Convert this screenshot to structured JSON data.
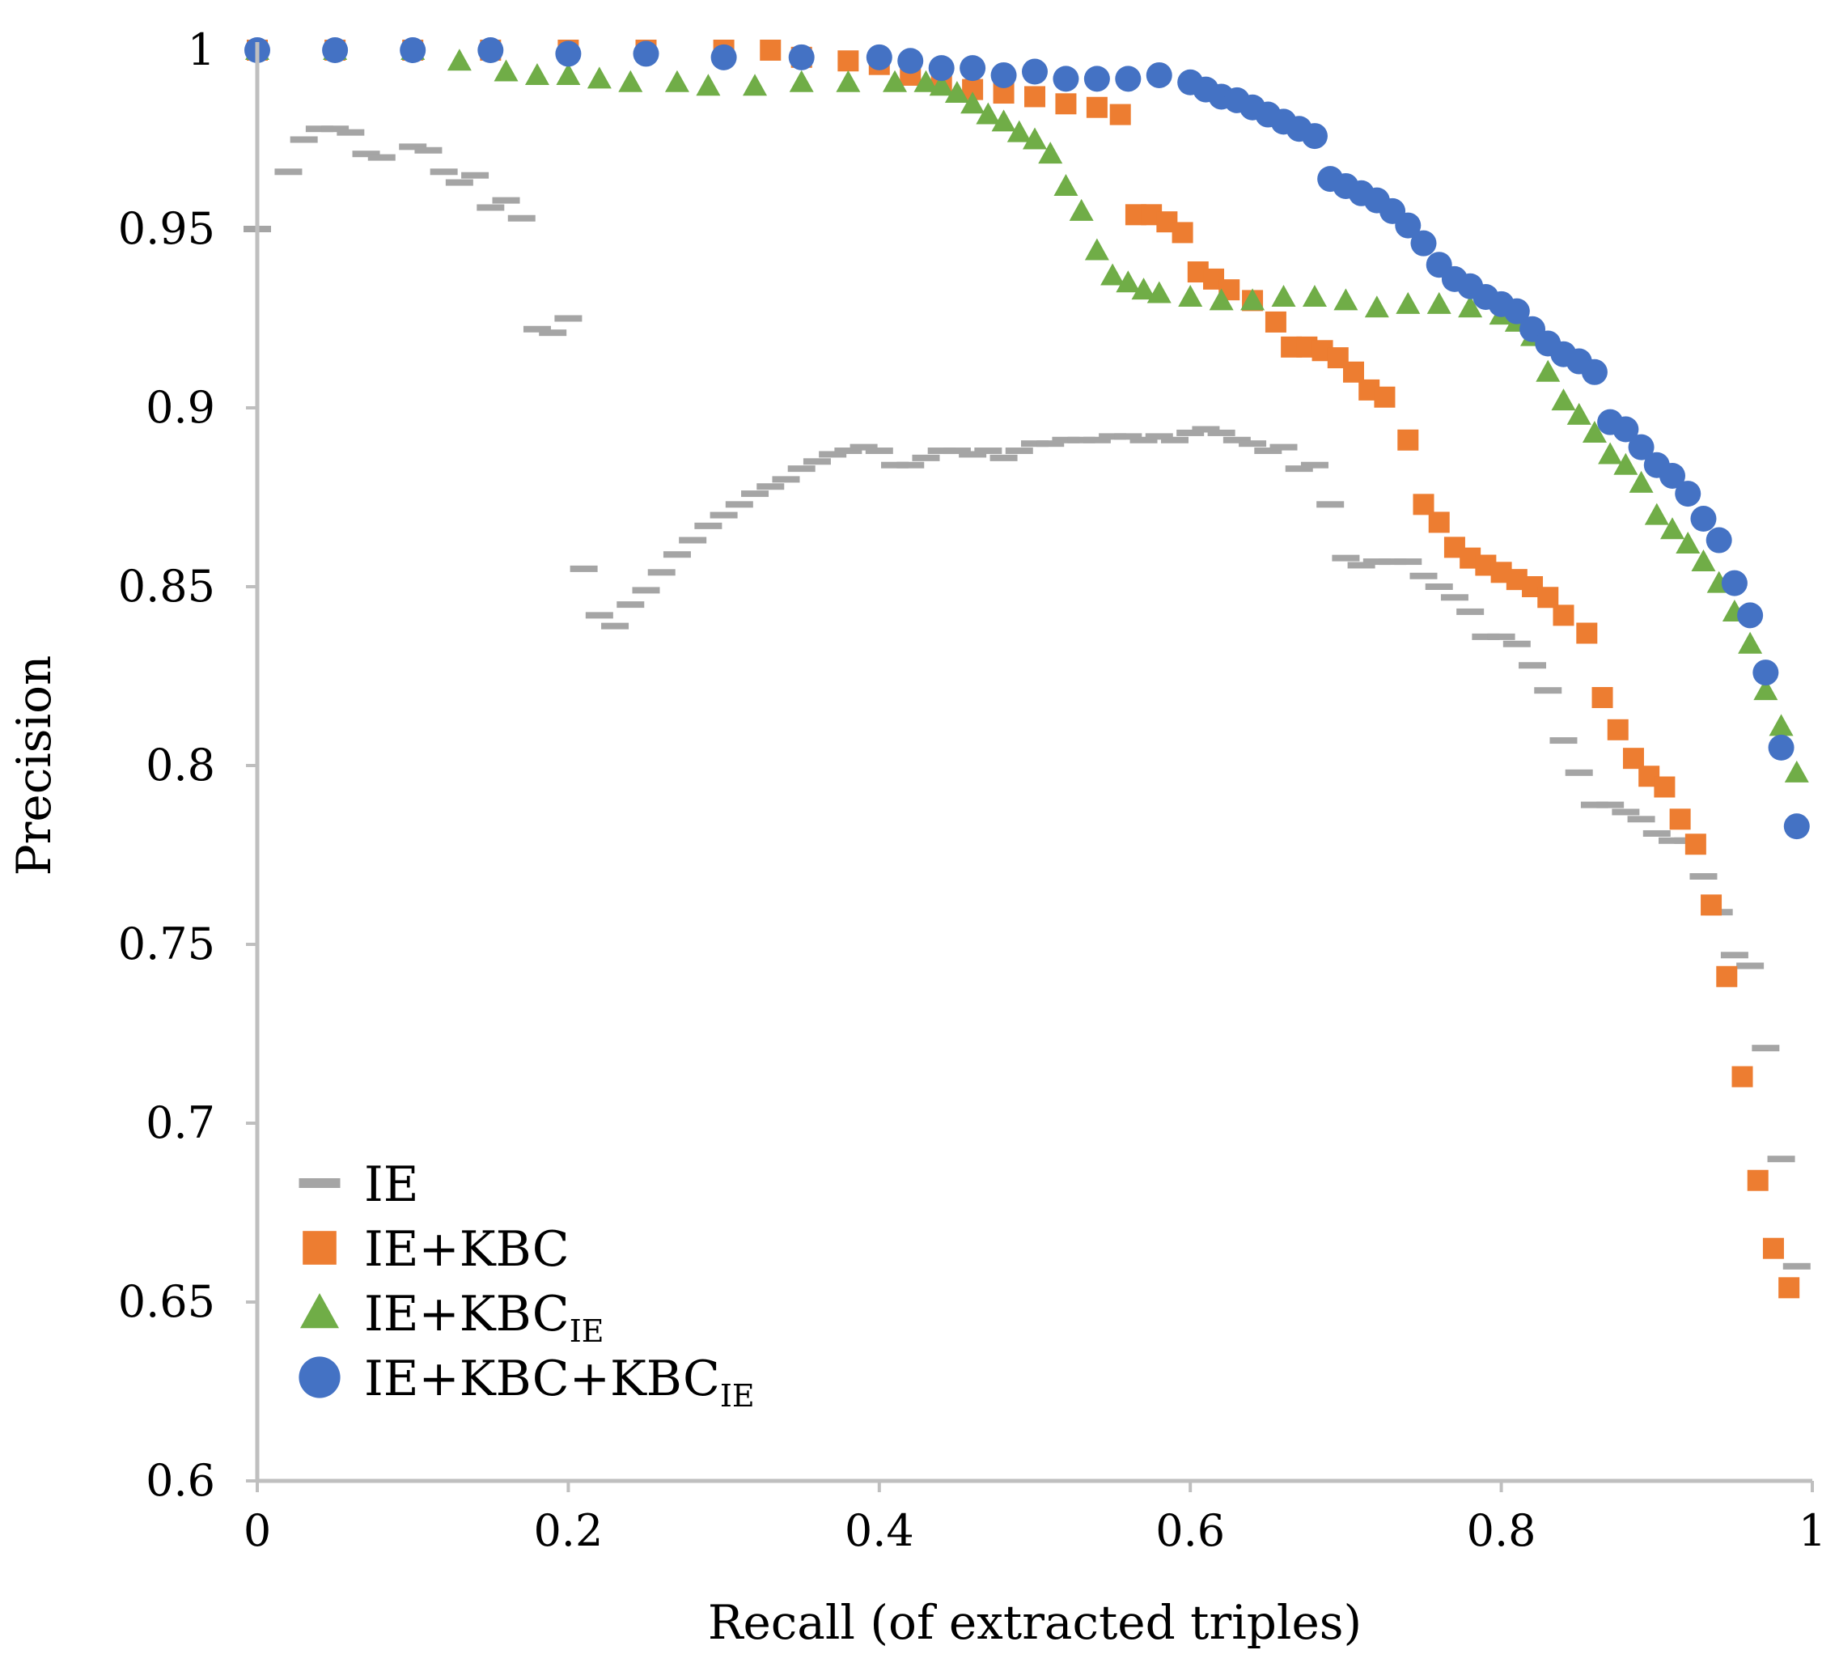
{
  "chart_data": {
    "type": "scatter",
    "title": "",
    "xlabel": "Recall (of extracted triples)",
    "ylabel": "Precision",
    "xlim": [
      0,
      1
    ],
    "ylim": [
      0.6,
      1
    ],
    "x_ticks": [
      0,
      0.2,
      0.4,
      0.6,
      0.8,
      1
    ],
    "x_tick_labels": [
      "0",
      "0.2",
      "0.4",
      "0.6",
      "0.8",
      "1"
    ],
    "y_ticks": [
      0.6,
      0.65,
      0.7,
      0.75,
      0.8,
      0.85,
      0.9,
      0.95,
      1
    ],
    "y_tick_labels": [
      "0.6",
      "0.65",
      "0.7",
      "0.75",
      "0.8",
      "0.85",
      "0.9",
      "0.95",
      "1"
    ],
    "grid": false,
    "legend_position": "bottom-left",
    "series": [
      {
        "name": "IE",
        "label_main": "IE",
        "label_sub": "",
        "marker": "dash",
        "color": "#a5a5a5",
        "x": [
          0.0,
          0.02,
          0.03,
          0.04,
          0.05,
          0.06,
          0.07,
          0.08,
          0.1,
          0.11,
          0.12,
          0.13,
          0.14,
          0.15,
          0.16,
          0.17,
          0.18,
          0.19,
          0.2,
          0.21,
          0.22,
          0.23,
          0.24,
          0.25,
          0.26,
          0.27,
          0.28,
          0.29,
          0.3,
          0.31,
          0.32,
          0.33,
          0.34,
          0.35,
          0.36,
          0.37,
          0.38,
          0.39,
          0.4,
          0.41,
          0.42,
          0.43,
          0.44,
          0.45,
          0.46,
          0.47,
          0.48,
          0.49,
          0.5,
          0.51,
          0.52,
          0.53,
          0.54,
          0.55,
          0.56,
          0.57,
          0.58,
          0.59,
          0.6,
          0.61,
          0.62,
          0.63,
          0.64,
          0.65,
          0.66,
          0.67,
          0.68,
          0.69,
          0.7,
          0.71,
          0.72,
          0.73,
          0.74,
          0.75,
          0.76,
          0.77,
          0.78,
          0.79,
          0.8,
          0.81,
          0.82,
          0.83,
          0.84,
          0.85,
          0.86,
          0.87,
          0.88,
          0.89,
          0.9,
          0.91,
          0.92,
          0.93,
          0.94,
          0.95,
          0.96,
          0.97,
          0.98,
          0.99
        ],
        "y": [
          0.95,
          0.966,
          0.975,
          0.978,
          0.978,
          0.977,
          0.971,
          0.97,
          0.973,
          0.972,
          0.966,
          0.963,
          0.965,
          0.956,
          0.958,
          0.953,
          0.922,
          0.921,
          0.925,
          0.855,
          0.842,
          0.839,
          0.845,
          0.849,
          0.854,
          0.859,
          0.863,
          0.867,
          0.87,
          0.873,
          0.876,
          0.878,
          0.88,
          0.883,
          0.885,
          0.887,
          0.888,
          0.889,
          0.888,
          0.884,
          0.884,
          0.886,
          0.888,
          0.888,
          0.887,
          0.888,
          0.886,
          0.888,
          0.89,
          0.89,
          0.891,
          0.891,
          0.891,
          0.892,
          0.892,
          0.891,
          0.892,
          0.891,
          0.893,
          0.894,
          0.893,
          0.891,
          0.89,
          0.888,
          0.889,
          0.883,
          0.884,
          0.873,
          0.858,
          0.856,
          0.857,
          0.857,
          0.857,
          0.853,
          0.85,
          0.847,
          0.843,
          0.836,
          0.836,
          0.834,
          0.828,
          0.821,
          0.807,
          0.798,
          0.789,
          0.789,
          0.787,
          0.785,
          0.781,
          0.779,
          0.779,
          0.769,
          0.759,
          0.747,
          0.744,
          0.721,
          0.69,
          0.66
        ]
      },
      {
        "name": "IE+KBC",
        "label_main": "IE+KBC",
        "label_sub": "",
        "marker": "square",
        "color": "#ed7d31",
        "x": [
          0.0,
          0.05,
          0.1,
          0.15,
          0.2,
          0.25,
          0.3,
          0.33,
          0.35,
          0.38,
          0.4,
          0.42,
          0.44,
          0.46,
          0.48,
          0.5,
          0.52,
          0.54,
          0.555,
          0.565,
          0.575,
          0.585,
          0.595,
          0.605,
          0.615,
          0.625,
          0.64,
          0.655,
          0.665,
          0.675,
          0.685,
          0.695,
          0.705,
          0.715,
          0.725,
          0.74,
          0.75,
          0.76,
          0.77,
          0.78,
          0.79,
          0.8,
          0.81,
          0.82,
          0.83,
          0.84,
          0.855,
          0.865,
          0.875,
          0.885,
          0.895,
          0.905,
          0.915,
          0.925,
          0.935,
          0.945,
          0.955,
          0.965,
          0.975,
          0.985
        ],
        "y": [
          1.0,
          1.0,
          1.0,
          1.0,
          1.0,
          1.0,
          1.0,
          1.0,
          0.998,
          0.997,
          0.996,
          0.993,
          0.991,
          0.989,
          0.988,
          0.987,
          0.985,
          0.984,
          0.982,
          0.954,
          0.954,
          0.952,
          0.949,
          0.938,
          0.936,
          0.933,
          0.93,
          0.924,
          0.917,
          0.917,
          0.916,
          0.914,
          0.91,
          0.905,
          0.903,
          0.891,
          0.873,
          0.868,
          0.861,
          0.858,
          0.856,
          0.854,
          0.852,
          0.85,
          0.847,
          0.842,
          0.837,
          0.819,
          0.81,
          0.802,
          0.797,
          0.794,
          0.785,
          0.778,
          0.761,
          0.741,
          0.713,
          0.684,
          0.665,
          0.654
        ]
      },
      {
        "name": "IE+KBC_IE",
        "label_main": "IE+KBC",
        "label_sub": "IE",
        "marker": "triangle",
        "color": "#70ad47",
        "x": [
          0.0,
          0.05,
          0.1,
          0.13,
          0.16,
          0.18,
          0.2,
          0.22,
          0.24,
          0.27,
          0.29,
          0.32,
          0.35,
          0.38,
          0.41,
          0.43,
          0.44,
          0.45,
          0.46,
          0.47,
          0.48,
          0.49,
          0.5,
          0.51,
          0.52,
          0.53,
          0.54,
          0.55,
          0.56,
          0.57,
          0.58,
          0.6,
          0.62,
          0.64,
          0.66,
          0.68,
          0.7,
          0.72,
          0.74,
          0.76,
          0.78,
          0.8,
          0.81,
          0.82,
          0.83,
          0.84,
          0.85,
          0.86,
          0.87,
          0.88,
          0.89,
          0.9,
          0.91,
          0.92,
          0.93,
          0.94,
          0.95,
          0.96,
          0.97,
          0.98,
          0.99
        ],
        "y": [
          1.0,
          1.0,
          1.0,
          0.997,
          0.994,
          0.993,
          0.993,
          0.992,
          0.991,
          0.991,
          0.99,
          0.99,
          0.991,
          0.991,
          0.991,
          0.991,
          0.99,
          0.988,
          0.985,
          0.982,
          0.98,
          0.977,
          0.975,
          0.971,
          0.962,
          0.955,
          0.944,
          0.937,
          0.935,
          0.933,
          0.932,
          0.931,
          0.93,
          0.93,
          0.931,
          0.931,
          0.93,
          0.928,
          0.929,
          0.929,
          0.928,
          0.926,
          0.924,
          0.92,
          0.91,
          0.902,
          0.898,
          0.893,
          0.887,
          0.884,
          0.879,
          0.87,
          0.866,
          0.862,
          0.857,
          0.851,
          0.843,
          0.834,
          0.821,
          0.811,
          0.798
        ]
      },
      {
        "name": "IE+KBC+KBC_IE",
        "label_main": "IE+KBC+KBC",
        "label_sub": "IE",
        "marker": "circle",
        "color": "#4472c4",
        "x": [
          0.0,
          0.05,
          0.1,
          0.15,
          0.2,
          0.25,
          0.3,
          0.35,
          0.4,
          0.42,
          0.44,
          0.46,
          0.48,
          0.5,
          0.52,
          0.54,
          0.56,
          0.58,
          0.6,
          0.61,
          0.62,
          0.63,
          0.64,
          0.65,
          0.66,
          0.67,
          0.68,
          0.69,
          0.7,
          0.71,
          0.72,
          0.73,
          0.74,
          0.75,
          0.76,
          0.77,
          0.78,
          0.79,
          0.8,
          0.81,
          0.82,
          0.83,
          0.84,
          0.85,
          0.86,
          0.87,
          0.88,
          0.89,
          0.9,
          0.91,
          0.92,
          0.93,
          0.94,
          0.95,
          0.96,
          0.97,
          0.98,
          0.99
        ],
        "y": [
          1.0,
          1.0,
          1.0,
          1.0,
          0.999,
          0.999,
          0.998,
          0.998,
          0.998,
          0.997,
          0.995,
          0.995,
          0.993,
          0.994,
          0.992,
          0.992,
          0.992,
          0.993,
          0.991,
          0.989,
          0.987,
          0.986,
          0.984,
          0.982,
          0.98,
          0.978,
          0.976,
          0.964,
          0.962,
          0.96,
          0.958,
          0.955,
          0.951,
          0.946,
          0.94,
          0.936,
          0.934,
          0.931,
          0.929,
          0.927,
          0.922,
          0.918,
          0.915,
          0.913,
          0.91,
          0.896,
          0.894,
          0.889,
          0.884,
          0.881,
          0.876,
          0.869,
          0.863,
          0.851,
          0.842,
          0.826,
          0.805,
          0.783
        ]
      }
    ]
  }
}
